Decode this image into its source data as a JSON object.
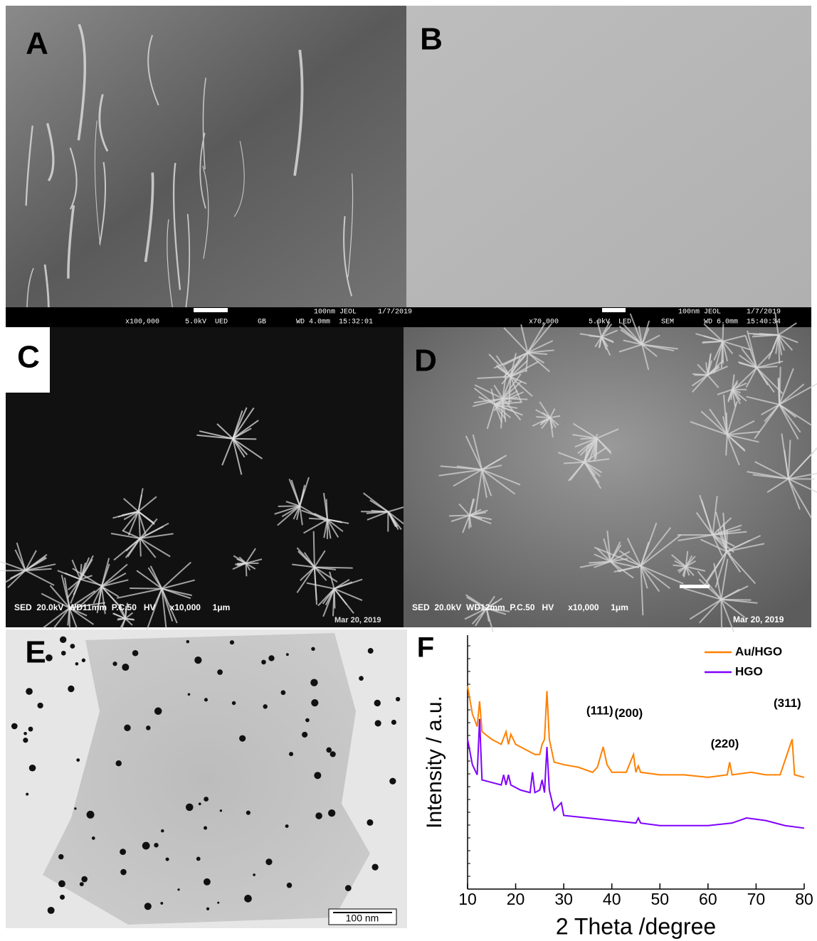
{
  "panels": [
    {
      "label": "A",
      "info": [
        "100nm JEOL     1/7/2019",
        "x100,000      5.0kV  UED       GB       WD 4.0mm  15:32:01"
      ]
    },
    {
      "label": "B",
      "info": [
        "100nm JEOL      1/7/2019",
        "x70,000       5.0kV  LED       SEM       WD 6.0mm  15:40:34"
      ]
    },
    {
      "label": "C",
      "info": [
        "SED  20.0kV  WD11mm  P.C.50   HV      x10,000     1μm",
        "Mar 20, 2019"
      ]
    },
    {
      "label": "D",
      "info": [
        "SED  20.0kV  WD12mm  P.C.50   HV      x10,000     1μm",
        "Mar 20, 2019"
      ]
    },
    {
      "label": "E",
      "info": [
        "100 nm"
      ]
    }
  ],
  "chart_data": {
    "type": "line",
    "label": "F",
    "x_label": "2 Theta /degree",
    "y_label": "Intensity / a.u.",
    "xlim": [
      10,
      80
    ],
    "xticks": [
      10,
      20,
      30,
      40,
      50,
      60,
      70,
      80
    ],
    "ylim": [
      0,
      100
    ],
    "legend": "top-right",
    "series": [
      {
        "name": "Au/HGO",
        "color": "#ff8000",
        "x": [
          10,
          11,
          12,
          12.5,
          13,
          15,
          17,
          18,
          18.5,
          19,
          20,
          22,
          24,
          25,
          25.5,
          26,
          26.5,
          27,
          28,
          30,
          33,
          36,
          37,
          38.2,
          39,
          40,
          43,
          44.5,
          45,
          45.5,
          46,
          50,
          55,
          60,
          64,
          64.5,
          65,
          69,
          72,
          75,
          77.5,
          78,
          80
        ],
        "values": [
          80,
          69,
          64,
          74,
          62,
          59,
          57,
          62,
          57,
          61,
          57,
          55,
          53,
          53,
          57,
          59,
          78,
          59,
          50,
          49,
          48,
          46,
          48,
          56,
          49,
          46,
          46,
          53,
          46,
          48.5,
          46,
          45,
          45,
          44,
          45,
          50,
          45,
          46,
          45,
          45,
          59,
          45,
          44
        ]
      },
      {
        "name": "HGO",
        "color": "#8000ff",
        "x": [
          10,
          11,
          12,
          12.5,
          13,
          15,
          17,
          17.5,
          18,
          18.5,
          19,
          21,
          23,
          23.5,
          24,
          25,
          25.5,
          26,
          26.5,
          27,
          28,
          29.5,
          30,
          35,
          40,
          45,
          45.5,
          46,
          50,
          55,
          60,
          65,
          68,
          72,
          76,
          80
        ],
        "values": [
          59,
          49,
          45,
          67,
          43,
          42,
          41,
          45,
          41,
          45,
          41,
          39,
          38,
          46,
          38,
          39,
          43,
          38,
          56,
          39,
          31,
          34,
          29,
          28,
          27,
          26,
          28,
          26,
          25,
          25,
          25,
          26,
          28,
          27,
          25,
          24
        ]
      }
    ],
    "annotations": [
      {
        "text": "(111)",
        "x": 37.5,
        "y": 70
      },
      {
        "text": "(200)",
        "x": 43.5,
        "y": 69
      },
      {
        "text": "(220)",
        "x": 63.5,
        "y": 57
      },
      {
        "text": "(311)",
        "x": 76.5,
        "y": 73
      }
    ]
  }
}
